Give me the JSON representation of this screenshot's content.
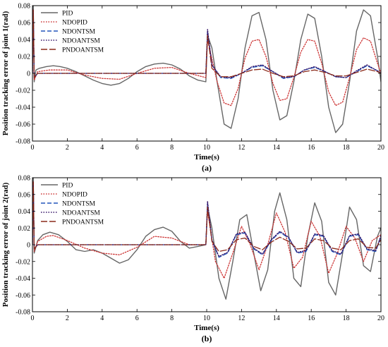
{
  "chart_data": [
    {
      "type": "line",
      "caption": "(a)",
      "xlabel": "Time(s)",
      "ylabel": "Position tracking error of joint 1(rad)",
      "xlim": [
        0,
        20
      ],
      "ylim": [
        -0.08,
        0.08
      ],
      "xticks": [
        "0",
        "2",
        "4",
        "6",
        "8",
        "10",
        "12",
        "14",
        "16",
        "18",
        "20"
      ],
      "yticks": [
        "-0.08",
        "-0.06",
        "-0.04",
        "-0.02",
        "0",
        "0.02",
        "0.04",
        "0.06",
        "0.08"
      ],
      "grid": false,
      "legend": "top-left",
      "series": [
        {
          "name": "PID",
          "color": "#666666",
          "dash": "solid",
          "x": [
            0,
            0.05,
            0.1,
            0.2,
            0.4,
            0.8,
            1.2,
            1.6,
            2.0,
            2.5,
            3.0,
            3.5,
            4.0,
            4.5,
            5.0,
            5.5,
            6.0,
            6.5,
            7.0,
            7.5,
            8.0,
            8.5,
            9.0,
            9.5,
            9.95,
            10.05,
            10.3,
            10.6,
            11.0,
            11.4,
            11.8,
            12.2,
            12.6,
            13.0,
            13.4,
            13.8,
            14.2,
            14.6,
            15.0,
            15.4,
            15.8,
            16.2,
            16.6,
            17.0,
            17.4,
            17.8,
            18.2,
            18.6,
            19.0,
            19.4,
            19.8,
            20
          ],
          "y": [
            0,
            0.08,
            -0.01,
            0.004,
            0.006,
            0.008,
            0.009,
            0.008,
            0.006,
            0.002,
            -0.003,
            -0.008,
            -0.012,
            -0.014,
            -0.012,
            -0.006,
            0.002,
            0.008,
            0.011,
            0.012,
            0.01,
            0.005,
            -0.003,
            -0.008,
            -0.01,
            0.045,
            0.03,
            -0.01,
            -0.06,
            -0.065,
            -0.03,
            0.03,
            0.068,
            0.072,
            0.04,
            -0.02,
            -0.055,
            -0.05,
            -0.01,
            0.04,
            0.07,
            0.065,
            0.02,
            -0.04,
            -0.07,
            -0.06,
            -0.01,
            0.05,
            0.075,
            0.068,
            0.02,
            -0.01
          ]
        },
        {
          "name": "NDOPID",
          "color": "#cc3333",
          "dash": "dotted",
          "x": [
            0,
            0.05,
            0.1,
            0.3,
            1.0,
            2.0,
            3.0,
            4.0,
            5.0,
            6.0,
            7.0,
            8.0,
            9.0,
            9.95,
            10.05,
            10.6,
            11.0,
            11.4,
            11.8,
            12.2,
            12.6,
            13.0,
            13.4,
            13.8,
            14.2,
            14.6,
            15.0,
            15.4,
            15.8,
            16.2,
            16.6,
            17.0,
            17.4,
            17.8,
            18.2,
            18.6,
            19.0,
            19.4,
            19.8,
            20
          ],
          "y": [
            0,
            0.07,
            -0.008,
            0.002,
            0.004,
            0.004,
            -0.002,
            -0.006,
            -0.007,
            0.0,
            0.006,
            0.007,
            0.0,
            -0.005,
            0.04,
            -0.01,
            -0.035,
            -0.038,
            -0.018,
            0.018,
            0.038,
            0.04,
            0.02,
            -0.012,
            -0.032,
            -0.03,
            -0.005,
            0.025,
            0.04,
            0.038,
            0.012,
            -0.022,
            -0.038,
            -0.034,
            -0.005,
            0.028,
            0.042,
            0.038,
            0.012,
            0.0
          ]
        },
        {
          "name": "NDONTSM",
          "color": "#2255bb",
          "dash": "dashed",
          "x": [
            0,
            0.05,
            0.1,
            0.3,
            2.0,
            5.0,
            8.0,
            9.95,
            10.05,
            10.3,
            10.8,
            11.4,
            12.0,
            12.6,
            13.2,
            13.8,
            14.4,
            15.0,
            15.6,
            16.2,
            16.8,
            17.4,
            18.0,
            18.6,
            19.2,
            19.8,
            20
          ],
          "y": [
            0,
            0.075,
            -0.005,
            0.0,
            0.0,
            0.0,
            0.0,
            0.0,
            0.05,
            0.01,
            -0.005,
            -0.006,
            0.0,
            0.007,
            0.009,
            0.002,
            -0.006,
            -0.004,
            0.004,
            0.007,
            0.002,
            -0.004,
            -0.005,
            0.002,
            0.009,
            0.003,
            0.0
          ]
        },
        {
          "name": "NDOANTSM",
          "color": "#331166",
          "dash": "dotted",
          "x": [
            0,
            0.05,
            0.1,
            0.3,
            2.0,
            5.0,
            8.0,
            9.95,
            10.05,
            10.3,
            10.8,
            11.4,
            12.0,
            12.6,
            13.2,
            13.8,
            14.4,
            15.0,
            15.6,
            16.2,
            16.8,
            17.4,
            18.0,
            18.6,
            19.2,
            19.8,
            20
          ],
          "y": [
            0,
            0.075,
            -0.005,
            0.0,
            0.0,
            0.0,
            0.0,
            0.0,
            0.052,
            0.01,
            -0.004,
            -0.005,
            0.0,
            0.008,
            0.01,
            0.002,
            -0.005,
            -0.004,
            0.004,
            0.008,
            0.002,
            -0.004,
            -0.005,
            0.003,
            0.01,
            0.003,
            0.0
          ]
        },
        {
          "name": "PNDOANTSM",
          "color": "#8b2a1a",
          "dash": "longdash",
          "x": [
            0,
            0.05,
            0.1,
            0.3,
            2.0,
            5.0,
            8.0,
            9.95,
            10.05,
            10.3,
            10.8,
            11.4,
            12.0,
            12.6,
            13.2,
            13.8,
            14.4,
            15.0,
            15.6,
            16.2,
            16.8,
            17.4,
            18.0,
            18.6,
            19.2,
            19.8,
            20
          ],
          "y": [
            0,
            0.075,
            -0.005,
            0.0,
            0.0,
            0.0,
            0.0,
            0.0,
            0.045,
            0.006,
            -0.004,
            -0.004,
            0.0,
            0.004,
            0.005,
            0.0,
            -0.004,
            -0.003,
            0.002,
            0.004,
            0.001,
            -0.003,
            -0.003,
            0.001,
            0.005,
            0.002,
            0.0
          ]
        }
      ]
    },
    {
      "type": "line",
      "caption": "(b)",
      "xlabel": "Time(s)",
      "ylabel": "Position tracking error of joint 2(rad)",
      "xlim": [
        0,
        20
      ],
      "ylim": [
        -0.08,
        0.08
      ],
      "xticks": [
        "0",
        "2",
        "4",
        "6",
        "8",
        "10",
        "12",
        "14",
        "16",
        "18",
        "20"
      ],
      "yticks": [
        "-0.08",
        "-0.06",
        "-0.04",
        "-0.02",
        "0",
        "0.02",
        "0.04",
        "0.06",
        "0.08"
      ],
      "grid": false,
      "legend": "top-left",
      "series": [
        {
          "name": "PID",
          "color": "#666666",
          "dash": "solid",
          "x": [
            0,
            0.05,
            0.1,
            0.3,
            0.6,
            1.0,
            1.5,
            2.0,
            2.5,
            3.0,
            3.5,
            4.0,
            4.5,
            5.0,
            5.5,
            6.0,
            6.5,
            7.0,
            7.5,
            8.0,
            8.5,
            9.0,
            9.5,
            9.95,
            10.05,
            10.3,
            10.7,
            11.1,
            11.5,
            11.9,
            12.3,
            12.7,
            13.1,
            13.5,
            13.9,
            14.2,
            14.6,
            15.0,
            15.4,
            15.8,
            16.2,
            16.6,
            17.0,
            17.4,
            17.8,
            18.2,
            18.6,
            19.0,
            19.4,
            19.8,
            20
          ],
          "y": [
            0,
            0.08,
            -0.01,
            0.005,
            0.012,
            0.015,
            0.012,
            0.004,
            -0.006,
            -0.008,
            -0.006,
            -0.01,
            -0.016,
            -0.022,
            -0.018,
            -0.006,
            0.01,
            0.018,
            0.021,
            0.016,
            0.004,
            -0.004,
            -0.002,
            0.0,
            0.045,
            0.02,
            -0.04,
            -0.065,
            -0.02,
            0.03,
            0.036,
            -0.01,
            -0.055,
            -0.03,
            0.04,
            0.062,
            0.03,
            -0.04,
            -0.05,
            0.01,
            0.05,
            0.028,
            -0.045,
            -0.06,
            -0.01,
            0.045,
            0.03,
            -0.025,
            -0.032,
            0.01,
            0.02
          ]
        },
        {
          "name": "NDOPID",
          "color": "#cc3333",
          "dash": "dotted",
          "x": [
            0,
            0.05,
            0.1,
            0.3,
            0.8,
            1.2,
            2.0,
            3.0,
            4.0,
            5.0,
            6.0,
            7.0,
            8.0,
            9.0,
            9.95,
            10.05,
            10.5,
            11.0,
            11.5,
            12.0,
            12.5,
            13.0,
            13.5,
            14.0,
            14.5,
            15.0,
            15.5,
            16.0,
            16.5,
            17.0,
            17.5,
            18.0,
            18.5,
            19.0,
            19.5,
            20
          ],
          "y": [
            0,
            0.07,
            -0.008,
            0.004,
            0.01,
            0.011,
            0.005,
            -0.004,
            -0.01,
            -0.012,
            -0.003,
            0.01,
            0.008,
            0.0,
            0.0,
            0.04,
            -0.02,
            -0.04,
            -0.01,
            0.022,
            0.0,
            -0.03,
            0.0,
            0.038,
            0.015,
            -0.028,
            -0.015,
            0.028,
            0.01,
            -0.034,
            -0.01,
            0.022,
            0.008,
            -0.02,
            0.005,
            0.012
          ]
        },
        {
          "name": "NDONTSM",
          "color": "#2255bb",
          "dash": "dashed",
          "x": [
            0,
            0.05,
            0.1,
            0.3,
            2.0,
            5.0,
            8.0,
            9.95,
            10.05,
            10.3,
            10.7,
            11.2,
            11.7,
            12.2,
            12.7,
            13.2,
            13.7,
            14.2,
            14.7,
            15.2,
            15.7,
            16.2,
            16.7,
            17.2,
            17.7,
            18.2,
            18.7,
            19.2,
            19.7,
            20
          ],
          "y": [
            0,
            0.075,
            -0.005,
            0.0,
            0.0,
            0.0,
            0.0,
            0.0,
            0.05,
            0.005,
            -0.015,
            -0.01,
            0.012,
            0.014,
            -0.005,
            -0.012,
            0.005,
            0.015,
            0.008,
            -0.01,
            -0.008,
            0.012,
            0.01,
            -0.008,
            -0.012,
            0.01,
            0.012,
            -0.006,
            -0.008,
            0.01
          ]
        },
        {
          "name": "NDOANTSM",
          "color": "#331166",
          "dash": "dotted",
          "x": [
            0,
            0.05,
            0.1,
            0.3,
            2.0,
            5.0,
            8.0,
            9.95,
            10.05,
            10.3,
            10.7,
            11.2,
            11.7,
            12.2,
            12.7,
            13.2,
            13.7,
            14.2,
            14.7,
            15.2,
            15.7,
            16.2,
            16.7,
            17.2,
            17.7,
            18.2,
            18.7,
            19.2,
            19.7,
            20
          ],
          "y": [
            0,
            0.075,
            -0.005,
            0.0,
            0.0,
            0.0,
            0.0,
            0.0,
            0.052,
            0.006,
            -0.014,
            -0.009,
            0.013,
            0.015,
            -0.004,
            -0.011,
            0.006,
            0.016,
            0.009,
            -0.009,
            -0.007,
            0.013,
            0.011,
            -0.007,
            -0.011,
            0.011,
            0.013,
            -0.005,
            -0.007,
            0.011
          ]
        },
        {
          "name": "PNDOANTSM",
          "color": "#8b2a1a",
          "dash": "longdash",
          "x": [
            0,
            0.05,
            0.1,
            0.3,
            2.0,
            5.0,
            8.0,
            9.95,
            10.05,
            10.3,
            10.7,
            11.2,
            11.7,
            12.2,
            12.7,
            13.2,
            13.7,
            14.2,
            14.7,
            15.2,
            15.7,
            16.2,
            16.7,
            17.2,
            17.7,
            18.2,
            18.7,
            19.2,
            19.7,
            20
          ],
          "y": [
            0,
            0.075,
            -0.005,
            0.0,
            0.0,
            0.0,
            0.0,
            0.0,
            0.045,
            0.004,
            -0.008,
            -0.006,
            0.006,
            0.008,
            -0.002,
            -0.006,
            0.003,
            0.009,
            0.004,
            -0.005,
            -0.004,
            0.007,
            0.005,
            -0.004,
            -0.006,
            0.005,
            0.007,
            -0.003,
            -0.004,
            0.006
          ]
        }
      ]
    }
  ]
}
